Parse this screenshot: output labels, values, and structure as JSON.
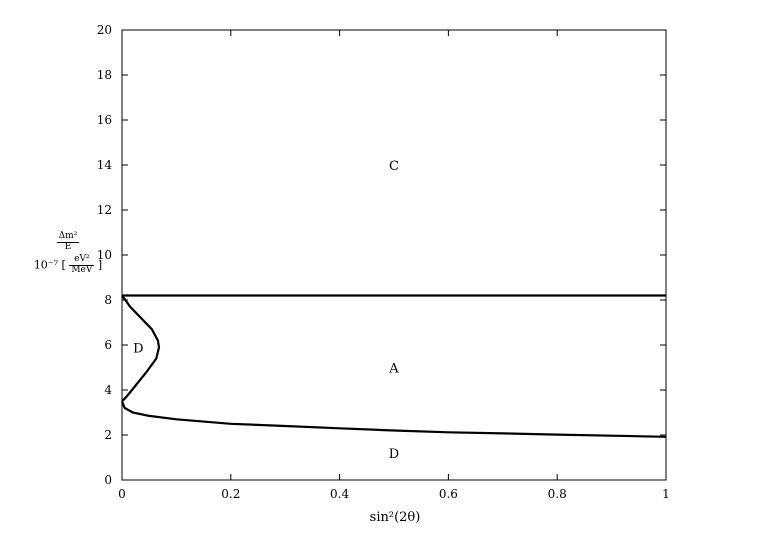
{
  "chart_data": {
    "type": "line",
    "title": "",
    "xlabel": "sin²(2θ)",
    "ylabel": {
      "fraction_numerator": "Δm²",
      "fraction_denominator": "E",
      "scale_prefix": "10⁻⁷",
      "unit_numerator": "eV²",
      "unit_denominator": "MeV"
    },
    "xlim": [
      0,
      1
    ],
    "ylim": [
      0,
      20
    ],
    "x_ticks": [
      "0",
      "0.2",
      "0.4",
      "0.6",
      "0.8",
      "1"
    ],
    "y_ticks": [
      "0",
      "2",
      "4",
      "6",
      "8",
      "10",
      "12",
      "14",
      "16",
      "18",
      "20"
    ],
    "grid": false,
    "series": [
      {
        "kind": "horizontal-boundary",
        "points": [
          [
            0,
            8.2
          ],
          [
            1,
            8.2
          ]
        ]
      },
      {
        "kind": "lower-boundary",
        "points": [
          [
            0,
            3.5
          ],
          [
            0.005,
            3.2
          ],
          [
            0.02,
            3.0
          ],
          [
            0.05,
            2.85
          ],
          [
            0.1,
            2.7
          ],
          [
            0.2,
            2.5
          ],
          [
            0.3,
            2.4
          ],
          [
            0.4,
            2.3
          ],
          [
            0.5,
            2.2
          ],
          [
            0.6,
            2.12
          ],
          [
            0.7,
            2.07
          ],
          [
            0.8,
            2.02
          ],
          [
            0.9,
            1.97
          ],
          [
            1.0,
            1.92
          ]
        ]
      },
      {
        "kind": "nose-boundary",
        "points": [
          [
            0,
            8.2
          ],
          [
            0.015,
            7.7
          ],
          [
            0.035,
            7.2
          ],
          [
            0.055,
            6.7
          ],
          [
            0.066,
            6.2
          ],
          [
            0.068,
            5.9
          ],
          [
            0.063,
            5.4
          ],
          [
            0.045,
            4.8
          ],
          [
            0.025,
            4.2
          ],
          [
            0.008,
            3.7
          ],
          [
            0,
            3.5
          ]
        ]
      }
    ],
    "region_labels": [
      {
        "text": "C",
        "x": 0.5,
        "y": 14
      },
      {
        "text": "A",
        "x": 0.5,
        "y": 5
      },
      {
        "text": "D",
        "x": 0.03,
        "y": 5.9
      },
      {
        "text": "D",
        "x": 0.5,
        "y": 1.2
      }
    ]
  }
}
